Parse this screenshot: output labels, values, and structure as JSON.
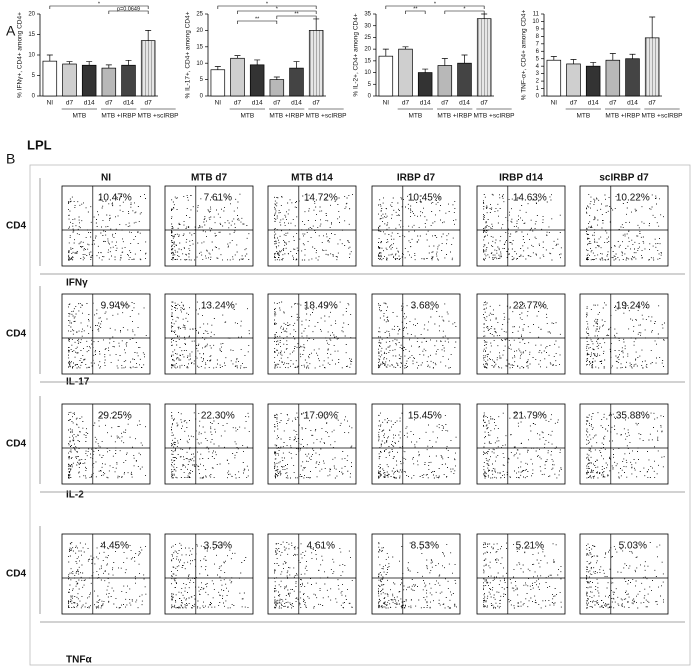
{
  "panel_a": {
    "label": "A"
  },
  "chart_data": [
    {
      "type": "bar",
      "y_label": "% IFNγ+, CD4+ among CD4+",
      "categories": [
        "NI",
        "d7",
        "d14",
        "d7",
        "d14",
        "d7"
      ],
      "groups": [
        "MTB",
        "MTB +IRBP",
        "MTB +scIRBP"
      ],
      "values": [
        8.5,
        7.8,
        7.5,
        6.8,
        7.5,
        13.5
      ],
      "errors": [
        1.5,
        0.6,
        0.9,
        0.8,
        1.2,
        2.5
      ],
      "colors": [
        "#ffffff",
        "#cfcfcf",
        "#333333",
        "#b8b8b8",
        "#444444",
        "#e2e2e2"
      ],
      "ylim": [
        0,
        20
      ],
      "yticks": [
        0,
        5,
        10,
        15,
        20
      ],
      "annotations": [
        "*",
        "p=0.0649"
      ]
    },
    {
      "type": "bar",
      "y_label": "% IL-17+, CD4+ among CD4+",
      "categories": [
        "NI",
        "d7",
        "d14",
        "d7",
        "d14",
        "d7"
      ],
      "groups": [
        "MTB",
        "MTB +IRBP",
        "MTB +scIRBP"
      ],
      "values": [
        8,
        11.5,
        9.5,
        5,
        8.5,
        20
      ],
      "errors": [
        1,
        0.8,
        1.5,
        0.8,
        2,
        3.5
      ],
      "colors": [
        "#ffffff",
        "#cfcfcf",
        "#333333",
        "#b8b8b8",
        "#444444",
        "#e2e2e2"
      ],
      "ylim": [
        0,
        25
      ],
      "yticks": [
        0,
        5,
        10,
        15,
        20,
        25
      ],
      "annotations": [
        "*",
        "*",
        "**",
        "**"
      ]
    },
    {
      "type": "bar",
      "y_label": "% IL-2+, CD4+ among CD4+",
      "categories": [
        "NI",
        "d7",
        "d14",
        "d7",
        "d14",
        "d7"
      ],
      "groups": [
        "MTB",
        "MTB +IRBP",
        "MTB +scIRBP"
      ],
      "values": [
        17,
        20,
        10,
        13,
        14,
        33
      ],
      "errors": [
        3,
        1,
        1.5,
        3,
        3.5,
        2
      ],
      "colors": [
        "#ffffff",
        "#cfcfcf",
        "#333333",
        "#b8b8b8",
        "#444444",
        "#e2e2e2"
      ],
      "ylim": [
        0,
        35
      ],
      "yticks": [
        0,
        5,
        10,
        15,
        20,
        25,
        30,
        35
      ],
      "annotations": [
        "*",
        "**",
        "*"
      ]
    },
    {
      "type": "bar",
      "y_label": "% TNF-α+, CD4+ among CD4+",
      "categories": [
        "NI",
        "d7",
        "d14",
        "d7",
        "d14",
        "d7"
      ],
      "groups": [
        "MTB",
        "MTB +IRBP",
        "MTB +scIRBP"
      ],
      "values": [
        4.8,
        4.3,
        4,
        4.8,
        5,
        7.8
      ],
      "errors": [
        0.5,
        0.6,
        0.5,
        0.9,
        0.6,
        2.8
      ],
      "colors": [
        "#ffffff",
        "#cfcfcf",
        "#333333",
        "#b8b8b8",
        "#444444",
        "#e2e2e2"
      ],
      "ylim": [
        0,
        11
      ],
      "yticks": [
        0,
        1,
        2,
        3,
        4,
        5,
        6,
        7,
        8,
        9,
        10,
        11
      ]
    }
  ],
  "panel_b": {
    "label": "B",
    "tissue": "LPL",
    "columns": [
      "NI",
      "MTB d7",
      "MTB d14",
      "IRBP d7",
      "IRBP d14",
      "scIRBP d7"
    ],
    "rows": [
      {
        "y_label": "CD4",
        "marker": "IFNγ",
        "percentages": [
          "10.47%",
          "7.61%",
          "14.72%",
          "10.45%",
          "14.63%",
          "10.22%"
        ]
      },
      {
        "y_label": "CD4",
        "marker": "IL-17",
        "percentages": [
          "9.94%",
          "13.24%",
          "18.49%",
          "3.68%",
          "22.77%",
          "19.24%"
        ]
      },
      {
        "y_label": "CD4",
        "marker": "IL-2",
        "percentages": [
          "29.25%",
          "22.30%",
          "17.00%",
          "15.45%",
          "21.79%",
          "35.88%"
        ]
      },
      {
        "y_label": "CD4",
        "marker": "TNFα",
        "percentages": [
          "4.45%",
          "3.53%",
          "4.61%",
          "8.53%",
          "5.21%",
          "5.03%"
        ]
      }
    ]
  }
}
